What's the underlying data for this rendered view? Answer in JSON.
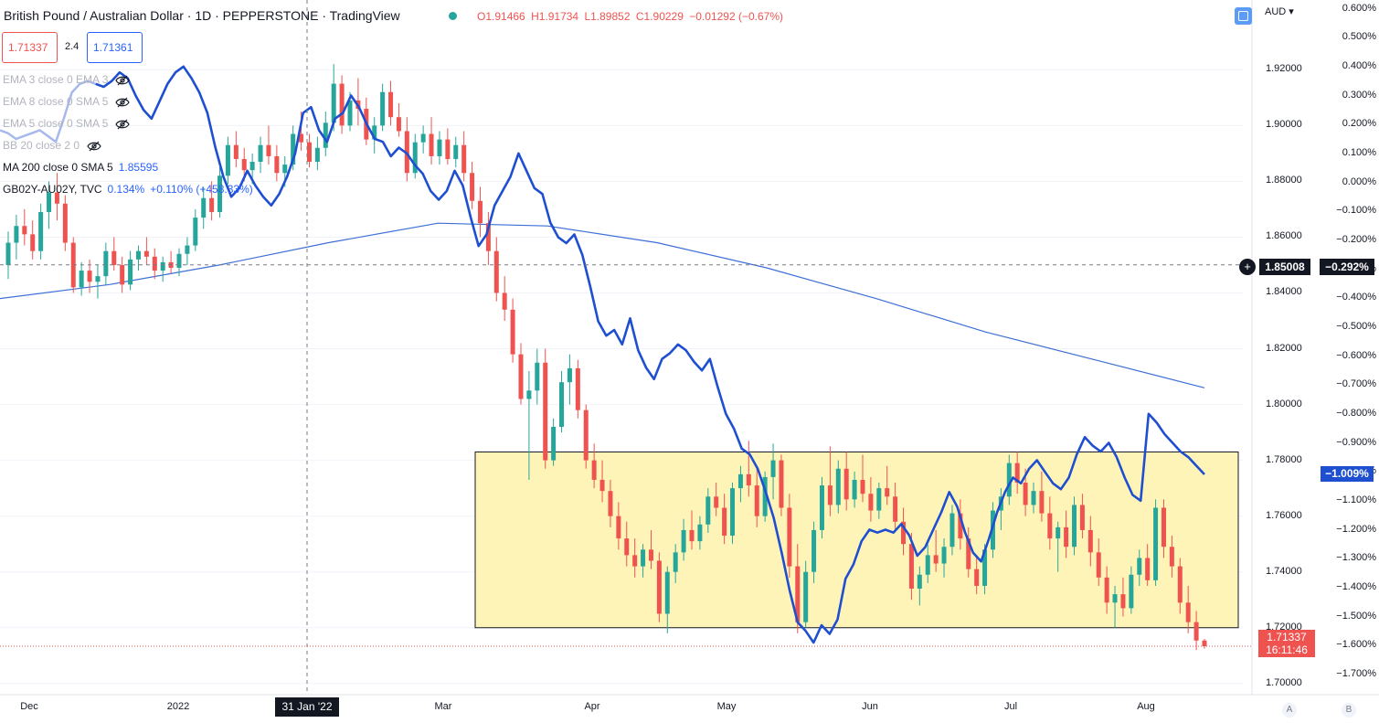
{
  "header": {
    "symbol_line": "British Pound / Australian Dollar · 1D · PEPPERSTONE · TradingView",
    "ohlc": {
      "open": "O1.91466",
      "high": "H1.91734",
      "low": "L1.89852",
      "close": "C1.90229",
      "change": "−0.01292 (−0.67%)"
    }
  },
  "trade": {
    "sell_price": "1.71337",
    "spread": "2.4",
    "buy_price": "1.71361"
  },
  "indicators": [
    {
      "text": "EMA 3 close 0 EMA 3",
      "muted": true,
      "eye": "eye-hidden-icon"
    },
    {
      "text": "EMA 8 close 0 SMA 5",
      "muted": true,
      "eye": "eye-hidden-icon"
    },
    {
      "text": "EMA 5 close 0 SMA 5",
      "muted": true,
      "eye": "eye-hidden-icon"
    },
    {
      "text": "BB 20 close 2 0",
      "muted": true,
      "eye": "eye-hidden-icon"
    },
    {
      "label": "MA 200 close 0 SMA 5",
      "value": "1.85595",
      "muted": false
    },
    {
      "label": "GB02Y-AU02Y, TVC",
      "value": "0.134%",
      "change": "+0.110% (+458.33%)",
      "muted": false
    }
  ],
  "currency": "AUD",
  "price_axis": [
    "1.92000",
    "1.90000",
    "1.88000",
    "1.86000",
    "1.84000",
    "1.82000",
    "1.80000",
    "1.78000",
    "1.76000",
    "1.74000",
    "1.72000",
    "1.70000"
  ],
  "pct_axis": [
    "0.600%",
    "0.500%",
    "0.400%",
    "0.300%",
    "0.200%",
    "0.100%",
    "0.000%",
    "−0.100%",
    "−0.200%",
    "−0.300%",
    "−0.400%",
    "−0.500%",
    "−0.600%",
    "−0.700%",
    "−0.800%",
    "−0.900%",
    "−1.000%",
    "−1.100%",
    "−1.200%",
    "−1.300%",
    "−1.400%",
    "−1.500%",
    "−1.600%",
    "−1.700%"
  ],
  "time_axis": [
    "Dec",
    "2022",
    "Mar",
    "Apr",
    "May",
    "Jun",
    "Jul",
    "Aug"
  ],
  "crosshair": {
    "date": "31 Jan '22",
    "price": "1.85008",
    "pct": "−0.292%"
  },
  "last_price": {
    "price": "1.71337",
    "countdown": "16:11:46"
  },
  "spread_last": "−1.009%",
  "corner_buttons": [
    "A",
    "B"
  ],
  "colors": {
    "up": "#26a69a",
    "down": "#ef5350",
    "spread_line": "#1e4fd1",
    "ma_line": "#3d6fd6",
    "zone_fill": "#fff4b8"
  },
  "chart_data": {
    "type": "candlestick",
    "series": [
      {
        "name": "GBPAUD",
        "values": [
          [
            1.85,
            1.862,
            1.845,
            1.858
          ],
          [
            1.858,
            1.868,
            1.852,
            1.864
          ],
          [
            1.864,
            1.87,
            1.857,
            1.861
          ],
          [
            1.861,
            1.866,
            1.852,
            1.855
          ],
          [
            1.855,
            1.872,
            1.852,
            1.869
          ],
          [
            1.869,
            1.88,
            1.863,
            1.876
          ],
          [
            1.876,
            1.883,
            1.866,
            1.872
          ],
          [
            1.872,
            1.875,
            1.855,
            1.858
          ],
          [
            1.858,
            1.86,
            1.84,
            1.842
          ],
          [
            1.842,
            1.851,
            1.839,
            1.848
          ],
          [
            1.848,
            1.852,
            1.84,
            1.844
          ],
          [
            1.844,
            1.85,
            1.838,
            1.846
          ],
          [
            1.846,
            1.858,
            1.843,
            1.855
          ],
          [
            1.855,
            1.86,
            1.848,
            1.85
          ],
          [
            1.85,
            1.853,
            1.84,
            1.843
          ],
          [
            1.843,
            1.855,
            1.841,
            1.852
          ],
          [
            1.852,
            1.857,
            1.848,
            1.855
          ],
          [
            1.855,
            1.86,
            1.85,
            1.853
          ],
          [
            1.853,
            1.856,
            1.845,
            1.848
          ],
          [
            1.848,
            1.853,
            1.844,
            1.851
          ],
          [
            1.851,
            1.855,
            1.847,
            1.849
          ],
          [
            1.849,
            1.856,
            1.846,
            1.854
          ],
          [
            1.854,
            1.86,
            1.85,
            1.857
          ],
          [
            1.857,
            1.87,
            1.855,
            1.867
          ],
          [
            1.867,
            1.878,
            1.863,
            1.874
          ],
          [
            1.874,
            1.88,
            1.866,
            1.869
          ],
          [
            1.869,
            1.885,
            1.867,
            1.882
          ],
          [
            1.882,
            1.896,
            1.879,
            1.893
          ],
          [
            1.893,
            1.898,
            1.885,
            1.888
          ],
          [
            1.888,
            1.892,
            1.88,
            1.884
          ],
          [
            1.884,
            1.89,
            1.879,
            1.887
          ],
          [
            1.887,
            1.896,
            1.883,
            1.893
          ],
          [
            1.893,
            1.9,
            1.886,
            1.889
          ],
          [
            1.889,
            1.893,
            1.88,
            1.883
          ],
          [
            1.883,
            1.889,
            1.878,
            1.886
          ],
          [
            1.886,
            1.9,
            1.884,
            1.897
          ],
          [
            1.897,
            1.905,
            1.891,
            1.894
          ],
          [
            1.894,
            1.897,
            1.885,
            1.887
          ],
          [
            1.887,
            1.896,
            1.884,
            1.892
          ],
          [
            1.892,
            1.905,
            1.889,
            1.901
          ],
          [
            1.901,
            1.922,
            1.898,
            1.915
          ],
          [
            1.915,
            1.918,
            1.897,
            1.9
          ],
          [
            1.9,
            1.912,
            1.898,
            1.909
          ],
          [
            1.909,
            1.917,
            1.9,
            1.906
          ],
          [
            1.906,
            1.91,
            1.893,
            1.895
          ],
          [
            1.895,
            1.903,
            1.89,
            1.9
          ],
          [
            1.9,
            1.915,
            1.898,
            1.912
          ],
          [
            1.912,
            1.916,
            1.9,
            1.903
          ],
          [
            1.903,
            1.908,
            1.896,
            1.898
          ],
          [
            1.898,
            1.903,
            1.88,
            1.883
          ],
          [
            1.883,
            1.897,
            1.881,
            1.894
          ],
          [
            1.894,
            1.9,
            1.89,
            1.897
          ],
          [
            1.897,
            1.903,
            1.886,
            1.889
          ],
          [
            1.889,
            1.898,
            1.886,
            1.895
          ],
          [
            1.895,
            1.899,
            1.886,
            1.888
          ],
          [
            1.888,
            1.896,
            1.885,
            1.893
          ],
          [
            1.893,
            1.898,
            1.88,
            1.883
          ],
          [
            1.883,
            1.887,
            1.87,
            1.873
          ],
          [
            1.873,
            1.878,
            1.86,
            1.865
          ],
          [
            1.865,
            1.869,
            1.85,
            1.855
          ],
          [
            1.855,
            1.86,
            1.837,
            1.84
          ],
          [
            1.84,
            1.846,
            1.83,
            1.834
          ],
          [
            1.834,
            1.838,
            1.815,
            1.818
          ],
          [
            1.818,
            1.822,
            1.8,
            1.802
          ],
          [
            1.802,
            1.812,
            1.773,
            1.805
          ],
          [
            1.805,
            1.82,
            1.8,
            1.815
          ],
          [
            1.815,
            1.82,
            1.777,
            1.78
          ],
          [
            1.78,
            1.795,
            1.778,
            1.792
          ],
          [
            1.792,
            1.812,
            1.79,
            1.808
          ],
          [
            1.808,
            1.818,
            1.8,
            1.813
          ],
          [
            1.813,
            1.816,
            1.795,
            1.798
          ],
          [
            1.798,
            1.8,
            1.777,
            1.78
          ],
          [
            1.78,
            1.786,
            1.77,
            1.773
          ],
          [
            1.773,
            1.78,
            1.765,
            1.769
          ],
          [
            1.769,
            1.773,
            1.756,
            1.76
          ],
          [
            1.76,
            1.765,
            1.748,
            1.752
          ],
          [
            1.752,
            1.758,
            1.742,
            1.746
          ],
          [
            1.746,
            1.752,
            1.738,
            1.742
          ],
          [
            1.742,
            1.75,
            1.738,
            1.748
          ],
          [
            1.748,
            1.755,
            1.741,
            1.744
          ],
          [
            1.744,
            1.747,
            1.722,
            1.725
          ],
          [
            1.725,
            1.742,
            1.718,
            1.74
          ],
          [
            1.74,
            1.75,
            1.736,
            1.747
          ],
          [
            1.747,
            1.759,
            1.744,
            1.755
          ],
          [
            1.755,
            1.762,
            1.748,
            1.751
          ],
          [
            1.751,
            1.76,
            1.748,
            1.757
          ],
          [
            1.757,
            1.77,
            1.754,
            1.767
          ],
          [
            1.767,
            1.772,
            1.76,
            1.763
          ],
          [
            1.763,
            1.768,
            1.75,
            1.753
          ],
          [
            1.753,
            1.772,
            1.75,
            1.77
          ],
          [
            1.77,
            1.778,
            1.765,
            1.775
          ],
          [
            1.775,
            1.787,
            1.767,
            1.771
          ],
          [
            1.771,
            1.778,
            1.756,
            1.76
          ],
          [
            1.76,
            1.776,
            1.758,
            1.774
          ],
          [
            1.774,
            1.786,
            1.766,
            1.78
          ],
          [
            1.78,
            1.782,
            1.76,
            1.763
          ],
          [
            1.763,
            1.768,
            1.738,
            1.742
          ],
          [
            1.742,
            1.75,
            1.718,
            1.722
          ],
          [
            1.722,
            1.744,
            1.72,
            1.74
          ],
          [
            1.74,
            1.758,
            1.736,
            1.755
          ],
          [
            1.755,
            1.774,
            1.752,
            1.771
          ],
          [
            1.771,
            1.785,
            1.76,
            1.764
          ],
          [
            1.764,
            1.78,
            1.761,
            1.777
          ],
          [
            1.777,
            1.783,
            1.762,
            1.766
          ],
          [
            1.766,
            1.776,
            1.763,
            1.773
          ],
          [
            1.773,
            1.782,
            1.765,
            1.768
          ],
          [
            1.768,
            1.774,
            1.758,
            1.762
          ],
          [
            1.762,
            1.772,
            1.759,
            1.77
          ],
          [
            1.77,
            1.778,
            1.764,
            1.767
          ],
          [
            1.767,
            1.772,
            1.755,
            1.758
          ],
          [
            1.758,
            1.763,
            1.746,
            1.75
          ],
          [
            1.75,
            1.754,
            1.73,
            1.734
          ],
          [
            1.734,
            1.742,
            1.728,
            1.739
          ],
          [
            1.739,
            1.75,
            1.736,
            1.746
          ],
          [
            1.746,
            1.755,
            1.74,
            1.743
          ],
          [
            1.743,
            1.752,
            1.738,
            1.749
          ],
          [
            1.749,
            1.764,
            1.746,
            1.761
          ],
          [
            1.761,
            1.766,
            1.748,
            1.752
          ],
          [
            1.752,
            1.756,
            1.738,
            1.741
          ],
          [
            1.741,
            1.745,
            1.732,
            1.735
          ],
          [
            1.735,
            1.75,
            1.732,
            1.748
          ],
          [
            1.748,
            1.765,
            1.745,
            1.762
          ],
          [
            1.762,
            1.77,
            1.755,
            1.767
          ],
          [
            1.767,
            1.782,
            1.764,
            1.779
          ],
          [
            1.779,
            1.783,
            1.768,
            1.772
          ],
          [
            1.772,
            1.777,
            1.76,
            1.764
          ],
          [
            1.764,
            1.772,
            1.761,
            1.769
          ],
          [
            1.769,
            1.776,
            1.758,
            1.761
          ],
          [
            1.761,
            1.767,
            1.748,
            1.752
          ],
          [
            1.752,
            1.758,
            1.74,
            1.756
          ],
          [
            1.756,
            1.762,
            1.745,
            1.749
          ],
          [
            1.749,
            1.767,
            1.746,
            1.764
          ],
          [
            1.764,
            1.768,
            1.752,
            1.755
          ],
          [
            1.755,
            1.76,
            1.742,
            1.747
          ],
          [
            1.747,
            1.752,
            1.735,
            1.738
          ],
          [
            1.738,
            1.742,
            1.725,
            1.729
          ],
          [
            1.729,
            1.735,
            1.72,
            1.732
          ],
          [
            1.732,
            1.738,
            1.724,
            1.727
          ],
          [
            1.727,
            1.742,
            1.725,
            1.739
          ],
          [
            1.739,
            1.748,
            1.735,
            1.745
          ],
          [
            1.745,
            1.75,
            1.735,
            1.737
          ],
          [
            1.737,
            1.766,
            1.735,
            1.763
          ],
          [
            1.763,
            1.766,
            1.745,
            1.749
          ],
          [
            1.749,
            1.753,
            1.738,
            1.742
          ],
          [
            1.742,
            1.745,
            1.725,
            1.729
          ],
          [
            1.729,
            1.735,
            1.718,
            1.722
          ],
          [
            1.722,
            1.726,
            1.712,
            1.7154
          ],
          [
            1.7154,
            1.716,
            1.7125,
            1.71337
          ]
        ]
      },
      {
        "name": "GB02Y-AU02Y, TVC",
        "values": [
          0.18,
          0.17,
          0.15,
          0.16,
          0.17,
          0.18,
          0.16,
          0.14,
          0.22,
          0.31,
          0.34,
          0.35,
          0.34,
          0.33,
          0.35,
          0.38,
          0.36,
          0.3,
          0.25,
          0.22,
          0.28,
          0.34,
          0.38,
          0.4,
          0.36,
          0.31,
          0.24,
          0.12,
          0.02,
          -0.05,
          -0.02,
          0.04,
          -0.01,
          -0.05,
          -0.08,
          -0.04,
          0.02,
          0.1,
          0.24,
          0.26,
          0.18,
          0.14,
          0.22,
          0.24,
          0.3,
          0.26,
          0.2,
          0.15,
          0.14,
          0.09,
          0.12,
          0.1,
          0.06,
          0.03,
          -0.03,
          -0.06,
          -0.03,
          0.04,
          -0.01,
          -0.12,
          -0.22,
          -0.18,
          -0.08,
          -0.03,
          0.02,
          0.1,
          0.04,
          -0.02,
          -0.04,
          -0.14,
          -0.19,
          -0.21,
          -0.18,
          -0.25,
          -0.36,
          -0.48,
          -0.53,
          -0.51,
          -0.56,
          -0.47,
          -0.58,
          -0.64,
          -0.68,
          -0.61,
          -0.59,
          -0.56,
          -0.58,
          -0.62,
          -0.65,
          -0.61,
          -0.71,
          -0.8,
          -0.85,
          -0.92,
          -0.94,
          -0.99,
          -1.07,
          -1.16,
          -1.28,
          -1.41,
          -1.52,
          -1.55,
          -1.59,
          -1.53,
          -1.56,
          -1.51,
          -1.37,
          -1.32,
          -1.24,
          -1.2,
          -1.21,
          -1.2,
          -1.21,
          -1.18,
          -1.22,
          -1.29,
          -1.26,
          -1.2,
          -1.14,
          -1.07,
          -1.12,
          -1.21,
          -1.28,
          -1.31,
          -1.23,
          -1.14,
          -1.07,
          -1.02,
          -1.04,
          -0.99,
          -0.96,
          -1.0,
          -1.04,
          -1.06,
          -1.02,
          -0.94,
          -0.88,
          -0.91,
          -0.93,
          -0.9,
          -0.95,
          -1.02,
          -1.08,
          -1.1,
          -0.8,
          -0.83,
          -0.87,
          -0.9,
          -0.93,
          -0.95,
          -0.98,
          -1.009
        ]
      }
    ],
    "ma200": {
      "name": "MA 200 close 0 SMA 5",
      "values": [
        1.838,
        1.843,
        1.85,
        1.858,
        1.865,
        1.864,
        1.858,
        1.849,
        1.838,
        1.826,
        1.816,
        1.806
      ]
    },
    "zone": {
      "price_low": 1.72,
      "price_high": 1.783
    },
    "ylim": [
      1.696,
      1.945
    ],
    "pct_lim": [
      -1.77,
      0.63
    ]
  }
}
